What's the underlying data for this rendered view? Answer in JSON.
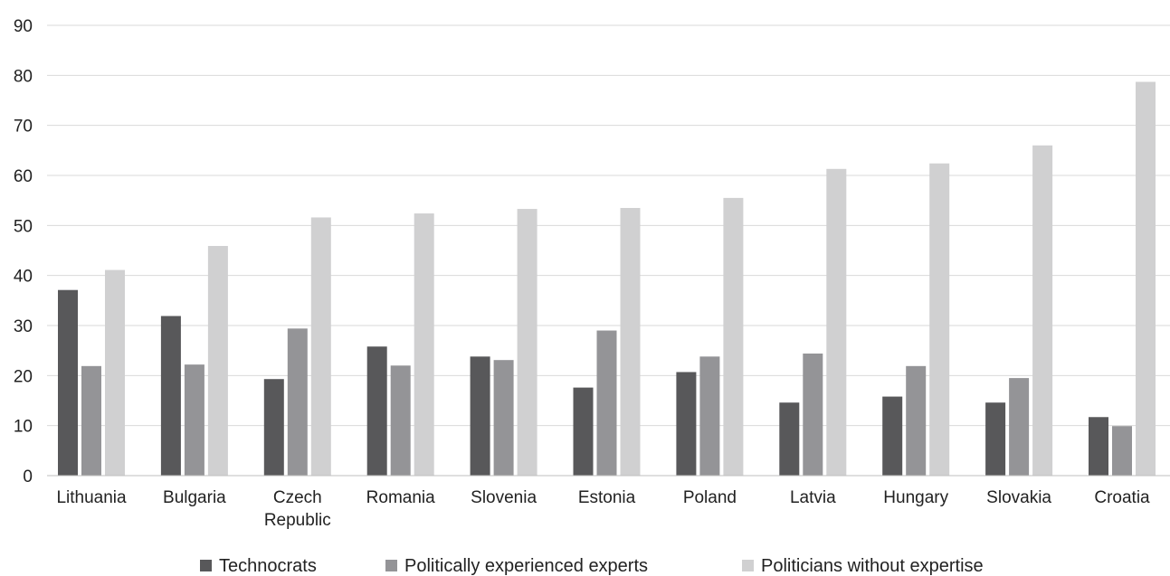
{
  "chart_data": {
    "type": "bar",
    "categories": [
      "Lithuania",
      "Bulgaria",
      "Czech Republic",
      "Romania",
      "Slovenia",
      "Estonia",
      "Poland",
      "Latvia",
      "Hungary",
      "Slovakia",
      "Croatia"
    ],
    "category_lines": [
      [
        "Lithuania"
      ],
      [
        "Bulgaria"
      ],
      [
        "Czech",
        "Republic"
      ],
      [
        "Romania"
      ],
      [
        "Slovenia"
      ],
      [
        "Estonia"
      ],
      [
        "Poland"
      ],
      [
        "Latvia"
      ],
      [
        "Hungary"
      ],
      [
        "Slovakia"
      ],
      [
        "Croatia"
      ]
    ],
    "series": [
      {
        "name": "Technocrats",
        "color": "#58585a",
        "values": [
          37.1,
          31.9,
          19.3,
          25.8,
          23.8,
          17.6,
          20.7,
          14.6,
          15.8,
          14.6,
          11.7
        ]
      },
      {
        "name": "Politically experienced experts",
        "color": "#949497",
        "values": [
          21.9,
          22.2,
          29.4,
          22.0,
          23.1,
          29.0,
          23.8,
          24.4,
          21.9,
          19.5,
          9.9
        ]
      },
      {
        "name": "Politicians without expertise",
        "color": "#d0d0d1",
        "values": [
          41.1,
          45.9,
          51.6,
          52.4,
          53.3,
          53.5,
          55.5,
          61.3,
          62.4,
          66.0,
          78.7
        ]
      }
    ],
    "yticks": [
      0,
      10,
      20,
      30,
      40,
      50,
      60,
      70,
      80,
      90
    ],
    "ylim": [
      0,
      90
    ],
    "grid": true,
    "legend_position": "bottom",
    "xlabel": "",
    "ylabel": "",
    "title": ""
  }
}
